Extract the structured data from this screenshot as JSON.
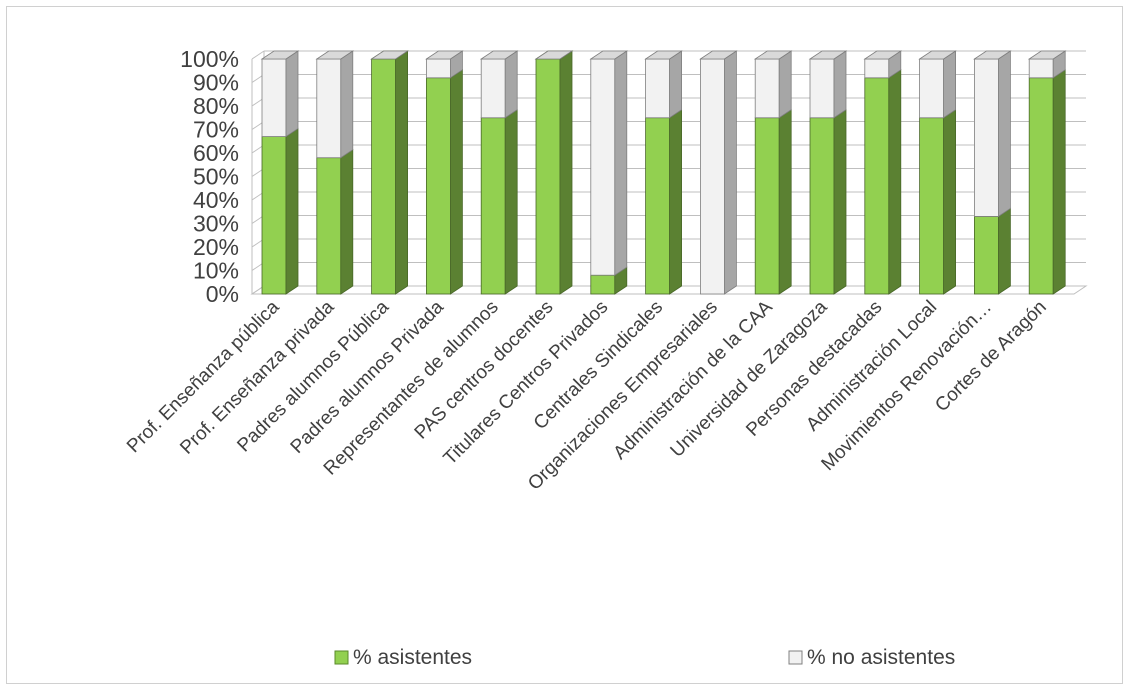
{
  "chart_data": {
    "type": "bar",
    "stacked": true,
    "percent_stacked": true,
    "three_d": true,
    "title": "",
    "xlabel": "",
    "ylabel": "",
    "ylim": [
      0,
      100
    ],
    "y_ticks": [
      "0%",
      "10%",
      "20%",
      "30%",
      "40%",
      "50%",
      "60%",
      "70%",
      "80%",
      "90%",
      "100%"
    ],
    "grid": true,
    "legend_position": "bottom",
    "categories": [
      "Prof.  Enseñanza  pública",
      "Prof. Enseñanza privada",
      "Padres alumnos Pública",
      "Padres alumnos Privada",
      "Representantes de alumnos",
      "PAS centros docentes",
      "Titulares Centros Privados",
      "Centrales Sindicales",
      "Organizaciones Empresariales",
      "Administración de la CAA",
      "Universidad de Zaragoza",
      "Personas destacadas",
      "Administración Local",
      "Movimientos Renovación…",
      "Cortes de Aragón"
    ],
    "series": [
      {
        "name": "% asistentes",
        "color": "#92d050",
        "values": [
          67,
          58,
          100,
          92,
          75,
          100,
          8,
          75,
          0,
          75,
          75,
          92,
          75,
          33,
          92
        ]
      },
      {
        "name": "% no asistentes",
        "color": "#f2f2f2",
        "values": [
          33,
          42,
          0,
          8,
          25,
          0,
          92,
          25,
          100,
          25,
          25,
          8,
          25,
          67,
          8
        ]
      }
    ]
  }
}
